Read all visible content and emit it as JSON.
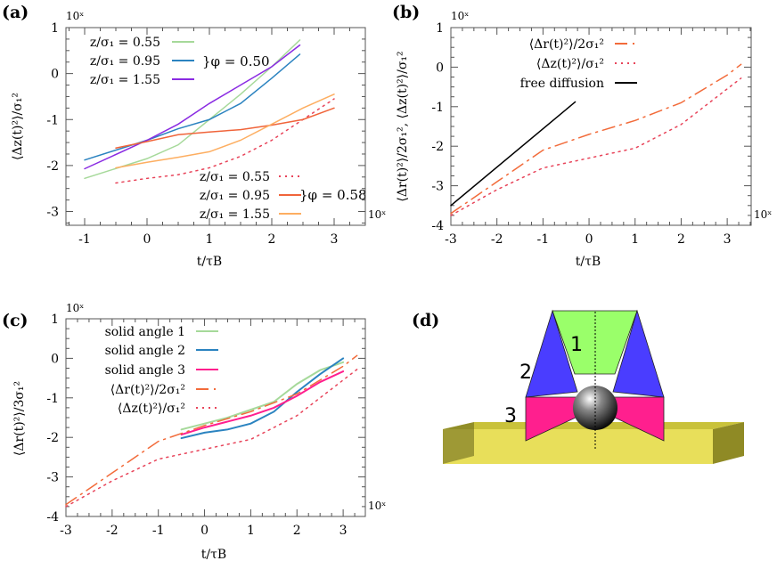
{
  "panels": {
    "a": {
      "label": "(a)",
      "exp_top": "10ˣ",
      "exp_right": "10ˣ",
      "xlabel": "t/τB",
      "ylabel": "⟨Δz(t)²⟩/σ₁²",
      "group1": "}φ = 0.50",
      "group2": "}φ = 0.58"
    },
    "b": {
      "label": "(b)",
      "exp_top": "10ˣ",
      "exp_right": "10ˣ",
      "xlabel": "t/τB",
      "ylabel": "⟨Δr(t)²⟩/2σ₁², ⟨Δz(t)²⟩/σ₁²"
    },
    "c": {
      "label": "(c)",
      "exp_top": "10ˣ",
      "exp_right": "10ˣ",
      "xlabel": "t/τB",
      "ylabel": "⟨Δr(t)²⟩/3σ₁²"
    },
    "d": {
      "label": "(d)",
      "cone_labels": [
        "1",
        "2",
        "3"
      ]
    }
  },
  "chart_data": [
    {
      "id": "a",
      "type": "line",
      "xlim": [
        -1.3,
        3.5
      ],
      "ylim": [
        -3.3,
        1
      ],
      "xticks": [
        -1,
        0,
        1,
        2,
        3
      ],
      "yticks": [
        1,
        0,
        -1,
        -2,
        -3
      ],
      "log_scale": "both (exponent shown, base 10)",
      "xlabel": "t/τB",
      "ylabel": "⟨Δz(t)²⟩/σ₁²",
      "series": [
        {
          "name": "z/σ₁ = 0.55",
          "group": "φ = 0.50",
          "color": "#a6d99a",
          "style": "solid",
          "x": [
            -1,
            0,
            0.5,
            1,
            1.5,
            2,
            2.45
          ],
          "y": [
            -2.28,
            -1.85,
            -1.55,
            -1.0,
            -0.45,
            0.15,
            0.73
          ]
        },
        {
          "name": "z/σ₁ = 0.95",
          "group": "φ = 0.50",
          "color": "#2b83c0",
          "style": "solid",
          "x": [
            -1,
            0,
            0.5,
            1,
            1.5,
            2,
            2.45
          ],
          "y": [
            -1.88,
            -1.45,
            -1.2,
            -1.0,
            -0.65,
            -0.1,
            0.42
          ]
        },
        {
          "name": "z/σ₁ = 1.55",
          "group": "φ = 0.50",
          "color": "#8a2be2",
          "style": "solid",
          "x": [
            -1,
            0,
            0.5,
            1,
            1.5,
            2,
            2.45
          ],
          "y": [
            -2.07,
            -1.45,
            -1.1,
            -0.65,
            -0.25,
            0.15,
            0.62
          ]
        },
        {
          "name": "z/σ₁ = 0.55",
          "group": "φ = 0.58",
          "color": "#e8445a",
          "style": "dotted",
          "x": [
            -0.5,
            0,
            0.5,
            1,
            1.5,
            2,
            2.5,
            3
          ],
          "y": [
            -2.38,
            -2.28,
            -2.2,
            -2.05,
            -1.8,
            -1.45,
            -1.0,
            -0.55
          ]
        },
        {
          "name": "z/σ₁ = 0.95",
          "group": "φ = 0.58",
          "color": "#f0643a",
          "style": "solid",
          "x": [
            -0.5,
            0,
            0.5,
            1,
            1.5,
            2,
            2.5,
            3
          ],
          "y": [
            -1.62,
            -1.48,
            -1.33,
            -1.27,
            -1.22,
            -1.12,
            -1.0,
            -0.75
          ]
        },
        {
          "name": "z/σ₁ = 1.55",
          "group": "φ = 0.58",
          "color": "#fdae61",
          "style": "solid",
          "x": [
            -0.5,
            0,
            0.5,
            1,
            1.5,
            2,
            2.5,
            3
          ],
          "y": [
            -2.05,
            -1.93,
            -1.82,
            -1.7,
            -1.45,
            -1.1,
            -0.75,
            -0.45
          ]
        }
      ]
    },
    {
      "id": "b",
      "type": "line",
      "xlim": [
        -3,
        3.52
      ],
      "ylim": [
        -4,
        1
      ],
      "xticks": [
        -3,
        -2,
        -1,
        0,
        1,
        2,
        3
      ],
      "yticks": [
        1,
        0,
        -1,
        -2,
        -3,
        -4
      ],
      "xlabel": "t/τB",
      "ylabel": "⟨Δr(t)²⟩/2σ₁², ⟨Δz(t)²⟩/σ₁²",
      "series": [
        {
          "name": "⟨Δr(t)²⟩/2σ₁²",
          "color": "#f26b3a",
          "style": "dashdot",
          "x": [
            -3,
            -2,
            -1,
            0,
            1,
            2,
            3,
            3.3
          ],
          "y": [
            -3.7,
            -2.9,
            -2.1,
            -1.7,
            -1.35,
            -0.9,
            -0.2,
            0.07
          ]
        },
        {
          "name": "⟨Δz(t)²⟩/σ₁²",
          "color": "#e8445a",
          "style": "dotted",
          "x": [
            -3,
            -2,
            -1,
            0,
            1,
            2,
            3,
            3.3
          ],
          "y": [
            -3.75,
            -3.1,
            -2.55,
            -2.3,
            -2.05,
            -1.45,
            -0.55,
            -0.28
          ]
        },
        {
          "name": "free diffusion",
          "color": "#000000",
          "style": "solid",
          "x": [
            -3,
            -0.3
          ],
          "y": [
            -3.5,
            -0.88
          ]
        }
      ]
    },
    {
      "id": "c",
      "type": "line",
      "xlim": [
        -3,
        3.48
      ],
      "ylim": [
        -4,
        1
      ],
      "xticks": [
        -3,
        -2,
        -1,
        0,
        1,
        2,
        3
      ],
      "yticks": [
        1,
        0,
        -1,
        -2,
        -3,
        -4
      ],
      "xlabel": "t/τB",
      "ylabel": "⟨Δr(t)²⟩/3σ₁²",
      "series": [
        {
          "name": "solid angle 1",
          "color": "#a6d99a",
          "style": "solid",
          "x": [
            -0.5,
            0,
            0.5,
            1,
            1.5,
            2,
            2.5,
            3
          ],
          "y": [
            -1.8,
            -1.65,
            -1.5,
            -1.3,
            -1.1,
            -0.65,
            -0.3,
            -0.1
          ]
        },
        {
          "name": "solid angle 2",
          "color": "#2b83c0",
          "style": "solid",
          "x": [
            -0.5,
            0,
            0.5,
            1,
            1.5,
            2,
            2.5,
            3
          ],
          "y": [
            -2.02,
            -1.88,
            -1.8,
            -1.65,
            -1.35,
            -0.85,
            -0.4,
            0.0
          ]
        },
        {
          "name": "solid angle 3",
          "color": "#ff1f8e",
          "style": "solid",
          "x": [
            -0.5,
            0,
            0.5,
            1,
            1.5,
            2,
            2.5,
            3
          ],
          "y": [
            -1.93,
            -1.75,
            -1.6,
            -1.45,
            -1.25,
            -0.95,
            -0.6,
            -0.33
          ]
        },
        {
          "name": "⟨Δr(t)²⟩/2σ₁²",
          "color": "#f26b3a",
          "style": "dashdot",
          "x": [
            -3,
            -2,
            -1,
            0,
            1,
            2,
            3,
            3.3
          ],
          "y": [
            -3.7,
            -2.9,
            -2.1,
            -1.7,
            -1.35,
            -0.9,
            -0.2,
            0.07
          ]
        },
        {
          "name": "⟨Δz(t)²⟩/σ₁²",
          "color": "#e8445a",
          "style": "dotted",
          "x": [
            -3,
            -2,
            -1,
            0,
            1,
            2,
            3,
            3.3
          ],
          "y": [
            -3.75,
            -3.1,
            -2.55,
            -2.3,
            -2.05,
            -1.45,
            -0.55,
            -0.28
          ]
        }
      ]
    }
  ]
}
